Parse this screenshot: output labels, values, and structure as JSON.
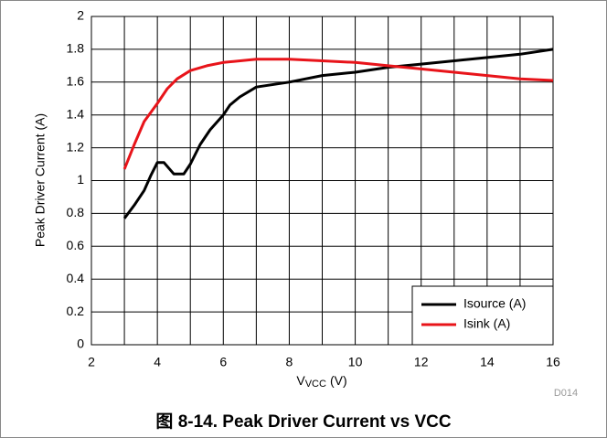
{
  "chart_data": {
    "type": "line",
    "ylabel": "Peak Driver Current (A)",
    "xlabel": "V",
    "xlabel_sub": "VCC",
    "xlabel_unit": "(V)",
    "note": "D014",
    "caption": "图 8-14. Peak Driver Current vs VCC",
    "xlim": [
      2,
      16
    ],
    "xticks": [
      2,
      4,
      6,
      8,
      10,
      12,
      14,
      16
    ],
    "xgrid_minor": [
      3,
      5,
      7,
      9,
      11,
      13,
      15
    ],
    "ylim": [
      0,
      2
    ],
    "yticks": [
      0,
      0.2,
      0.4,
      0.6,
      0.8,
      1,
      1.2,
      1.4,
      1.6,
      1.8,
      2
    ],
    "grid": true,
    "legend": "lower right",
    "series": [
      {
        "name": "Isource (A)",
        "color": "#000000",
        "x": [
          3,
          3.3,
          3.6,
          3.8,
          4.0,
          4.2,
          4.5,
          4.8,
          5.0,
          5.3,
          5.6,
          6.0,
          6.2,
          6.5,
          7,
          8,
          9,
          10,
          11,
          12,
          13,
          14,
          15,
          16
        ],
        "values": [
          0.77,
          0.85,
          0.94,
          1.03,
          1.11,
          1.11,
          1.04,
          1.04,
          1.1,
          1.22,
          1.31,
          1.4,
          1.46,
          1.51,
          1.57,
          1.6,
          1.64,
          1.66,
          1.69,
          1.71,
          1.73,
          1.75,
          1.77,
          1.8
        ]
      },
      {
        "name": "Isink (A)",
        "color": "#e8141a",
        "x": [
          3,
          3.3,
          3.6,
          4.0,
          4.3,
          4.6,
          5.0,
          5.5,
          6,
          7,
          8,
          9,
          10,
          11,
          12,
          13,
          14,
          15,
          16
        ],
        "values": [
          1.07,
          1.22,
          1.36,
          1.47,
          1.56,
          1.62,
          1.67,
          1.7,
          1.72,
          1.74,
          1.74,
          1.73,
          1.72,
          1.7,
          1.68,
          1.66,
          1.64,
          1.62,
          1.61
        ]
      }
    ]
  }
}
